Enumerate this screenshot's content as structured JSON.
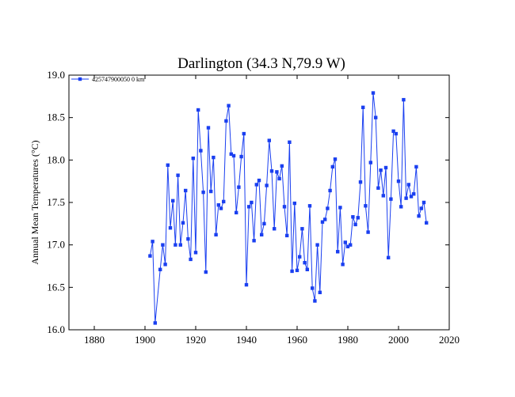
{
  "chart_data": {
    "type": "line",
    "title": "Darlington (34.3 N,79.9 W)",
    "xlabel": "",
    "ylabel": "Annual Mean Temperatures (°C)",
    "xlim": [
      1870,
      2020
    ],
    "ylim": [
      16.0,
      19.0
    ],
    "xticks": [
      "1880",
      "1900",
      "1920",
      "1940",
      "1960",
      "1980",
      "2000",
      "2020"
    ],
    "yticks": [
      "16.0",
      "16.5",
      "17.0",
      "17.5",
      "18.0",
      "18.5",
      "19.0"
    ],
    "grid": false,
    "legend_position": "top-left",
    "color": "#1a3ff0",
    "series": [
      {
        "name": "425747900050 0 km",
        "x": [
          1902,
          1903,
          1904,
          1906,
          1907,
          1908,
          1909,
          1910,
          1911,
          1912,
          1913,
          1914,
          1915,
          1916,
          1917,
          1918,
          1919,
          1920,
          1921,
          1922,
          1923,
          1924,
          1925,
          1926,
          1927,
          1928,
          1929,
          1930,
          1931,
          1932,
          1933,
          1934,
          1935,
          1936,
          1937,
          1938,
          1939,
          1940,
          1941,
          1942,
          1943,
          1944,
          1945,
          1946,
          1947,
          1948,
          1949,
          1950,
          1951,
          1952,
          1953,
          1954,
          1955,
          1956,
          1957,
          1958,
          1959,
          1960,
          1961,
          1962,
          1963,
          1964,
          1965,
          1966,
          1967,
          1968,
          1969,
          1970,
          1971,
          1972,
          1973,
          1974,
          1975,
          1976,
          1977,
          1978,
          1979,
          1980,
          1981,
          1982,
          1983,
          1984,
          1985,
          1986,
          1987,
          1988,
          1989,
          1990,
          1991,
          1992,
          1993,
          1994,
          1995,
          1996,
          1997,
          1998,
          1999,
          2000,
          2001,
          2002,
          2003,
          2004,
          2005,
          2006,
          2007,
          2008,
          2009,
          2010,
          2011
        ],
        "y": [
          16.87,
          17.04,
          16.08,
          16.71,
          17.0,
          16.77,
          17.94,
          17.2,
          17.52,
          17.0,
          17.82,
          17.0,
          17.26,
          17.64,
          17.07,
          16.83,
          18.02,
          16.91,
          18.59,
          18.11,
          17.62,
          16.68,
          18.38,
          17.63,
          18.03,
          17.12,
          17.47,
          17.43,
          17.51,
          18.46,
          18.64,
          18.07,
          18.05,
          17.38,
          17.68,
          18.04,
          18.31,
          16.53,
          17.45,
          17.5,
          17.05,
          17.71,
          17.76,
          17.12,
          17.25,
          17.7,
          18.23,
          17.87,
          17.19,
          17.86,
          17.78,
          17.93,
          17.45,
          17.11,
          18.21,
          16.69,
          17.49,
          16.7,
          16.86,
          17.19,
          16.79,
          16.71,
          17.46,
          16.49,
          16.34,
          17.0,
          16.44,
          17.27,
          17.3,
          17.43,
          17.64,
          17.92,
          18.01,
          16.92,
          17.44,
          16.77,
          17.03,
          16.98,
          17.0,
          17.33,
          17.24,
          17.32,
          17.74,
          18.62,
          17.46,
          17.15,
          17.97,
          18.79,
          18.5,
          17.67,
          17.88,
          17.58,
          17.91,
          16.85,
          17.54,
          18.34,
          18.31,
          17.75,
          17.45,
          18.71,
          17.55,
          17.71,
          17.57,
          17.6,
          17.92,
          17.34,
          17.43,
          17.5,
          17.26
        ]
      }
    ]
  }
}
